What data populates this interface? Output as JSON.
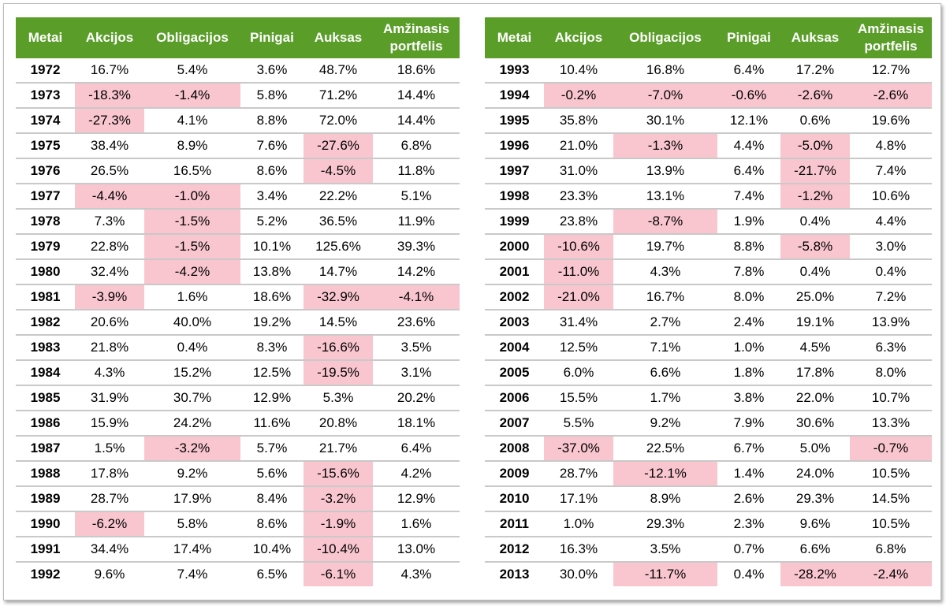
{
  "neg_color": "#f9c6cf",
  "header_color": "#5a9e29",
  "headers": [
    "Metai",
    "Akcijos",
    "Obligacijos",
    "Pinigai",
    "Auksas",
    "Amžinasis portfelis"
  ],
  "left_rows": [
    [
      "1972",
      "16.7%",
      "5.4%",
      "3.6%",
      "48.7%",
      "18.6%"
    ],
    [
      "1973",
      "-18.3%",
      "-1.4%",
      "5.8%",
      "71.2%",
      "14.4%"
    ],
    [
      "1974",
      "-27.3%",
      "4.1%",
      "8.8%",
      "72.0%",
      "14.4%"
    ],
    [
      "1975",
      "38.4%",
      "8.9%",
      "7.6%",
      "-27.6%",
      "6.8%"
    ],
    [
      "1976",
      "26.5%",
      "16.5%",
      "8.6%",
      "-4.5%",
      "11.8%"
    ],
    [
      "1977",
      "-4.4%",
      "-1.0%",
      "3.4%",
      "22.2%",
      "5.1%"
    ],
    [
      "1978",
      "7.3%",
      "-1.5%",
      "5.2%",
      "36.5%",
      "11.9%"
    ],
    [
      "1979",
      "22.8%",
      "-1.5%",
      "10.1%",
      "125.6%",
      "39.3%"
    ],
    [
      "1980",
      "32.4%",
      "-4.2%",
      "13.8%",
      "14.7%",
      "14.2%"
    ],
    [
      "1981",
      "-3.9%",
      "1.6%",
      "18.6%",
      "-32.9%",
      "-4.1%"
    ],
    [
      "1982",
      "20.6%",
      "40.0%",
      "19.2%",
      "14.5%",
      "23.6%"
    ],
    [
      "1983",
      "21.8%",
      "0.4%",
      "8.3%",
      "-16.6%",
      "3.5%"
    ],
    [
      "1984",
      "4.3%",
      "15.2%",
      "12.5%",
      "-19.5%",
      "3.1%"
    ],
    [
      "1985",
      "31.9%",
      "30.7%",
      "12.9%",
      "5.3%",
      "20.2%"
    ],
    [
      "1986",
      "15.9%",
      "24.2%",
      "11.6%",
      "20.8%",
      "18.1%"
    ],
    [
      "1987",
      "1.5%",
      "-3.2%",
      "5.7%",
      "21.7%",
      "6.4%"
    ],
    [
      "1988",
      "17.8%",
      "9.2%",
      "5.6%",
      "-15.6%",
      "4.2%"
    ],
    [
      "1989",
      "28.7%",
      "17.9%",
      "8.4%",
      "-3.2%",
      "12.9%"
    ],
    [
      "1990",
      "-6.2%",
      "5.8%",
      "8.6%",
      "-1.9%",
      "1.6%"
    ],
    [
      "1991",
      "34.4%",
      "17.4%",
      "10.4%",
      "-10.4%",
      "13.0%"
    ],
    [
      "1992",
      "9.6%",
      "7.4%",
      "6.5%",
      "-6.1%",
      "4.3%"
    ]
  ],
  "right_rows": [
    [
      "1993",
      "10.4%",
      "16.8%",
      "6.4%",
      "17.2%",
      "12.7%"
    ],
    [
      "1994",
      "-0.2%",
      "-7.0%",
      "-0.6%",
      "-2.6%",
      "-2.6%"
    ],
    [
      "1995",
      "35.8%",
      "30.1%",
      "12.1%",
      "0.6%",
      "19.6%"
    ],
    [
      "1996",
      "21.0%",
      "-1.3%",
      "4.4%",
      "-5.0%",
      "4.8%"
    ],
    [
      "1997",
      "31.0%",
      "13.9%",
      "6.4%",
      "-21.7%",
      "7.4%"
    ],
    [
      "1998",
      "23.3%",
      "13.1%",
      "7.4%",
      "-1.2%",
      "10.6%"
    ],
    [
      "1999",
      "23.8%",
      "-8.7%",
      "1.9%",
      "0.4%",
      "4.4%"
    ],
    [
      "2000",
      "-10.6%",
      "19.7%",
      "8.8%",
      "-5.8%",
      "3.0%"
    ],
    [
      "2001",
      "-11.0%",
      "4.3%",
      "7.8%",
      "0.4%",
      "0.4%"
    ],
    [
      "2002",
      "-21.0%",
      "16.7%",
      "8.0%",
      "25.0%",
      "7.2%"
    ],
    [
      "2003",
      "31.4%",
      "2.7%",
      "2.4%",
      "19.1%",
      "13.9%"
    ],
    [
      "2004",
      "12.5%",
      "7.1%",
      "1.0%",
      "4.5%",
      "6.3%"
    ],
    [
      "2005",
      "6.0%",
      "6.6%",
      "1.8%",
      "17.8%",
      "8.0%"
    ],
    [
      "2006",
      "15.5%",
      "1.7%",
      "3.8%",
      "22.0%",
      "10.7%"
    ],
    [
      "2007",
      "5.5%",
      "9.2%",
      "7.9%",
      "30.6%",
      "13.3%"
    ],
    [
      "2008",
      "-37.0%",
      "22.5%",
      "6.7%",
      "5.0%",
      "-0.7%"
    ],
    [
      "2009",
      "28.7%",
      "-12.1%",
      "1.4%",
      "24.0%",
      "10.5%"
    ],
    [
      "2010",
      "17.1%",
      "8.9%",
      "2.6%",
      "29.3%",
      "14.5%"
    ],
    [
      "2011",
      "1.0%",
      "29.3%",
      "2.3%",
      "9.6%",
      "10.5%"
    ],
    [
      "2012",
      "16.3%",
      "3.5%",
      "0.7%",
      "6.6%",
      "6.8%"
    ],
    [
      "2013",
      "30.0%",
      "-11.7%",
      "0.4%",
      "-28.2%",
      "-2.4%"
    ]
  ]
}
